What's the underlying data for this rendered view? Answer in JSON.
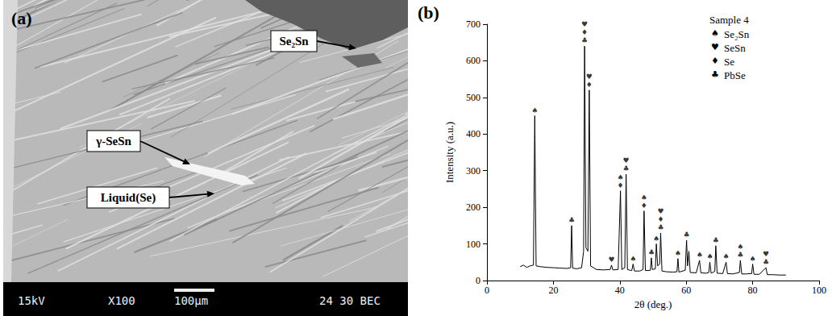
{
  "micrograph": {
    "panel_label": "(a)",
    "annotations": [
      {
        "label": "Se₂Sn"
      },
      {
        "label": "γ-SeSn"
      },
      {
        "label": "Liquid(Se)"
      }
    ],
    "info_bar": [
      "15kV",
      "X100",
      "100µm",
      "24 30 BEC"
    ]
  },
  "chart_data": {
    "type": "line",
    "panel_label": "(b)",
    "legend_title": "Sample 4",
    "legend": "upper right",
    "x_label": "2θ (deg.)",
    "y_label": "Intensity (a.u.)",
    "color": "#000000",
    "phases": [
      {
        "name": "Se₂Sn",
        "symbol": "♠"
      },
      {
        "name": "SeSn",
        "symbol": "♥"
      },
      {
        "name": "Se",
        "symbol": "♦"
      },
      {
        "name": "PbSe",
        "symbol": "♣"
      }
    ],
    "x": [
      10,
      11,
      12,
      13,
      14,
      14.4,
      14.8,
      16,
      18,
      20,
      22,
      24,
      25.2,
      25.5,
      25.8,
      27,
      28.5,
      29.1,
      29.4,
      29.8,
      30.4,
      30.8,
      31.2,
      33,
      35,
      37.1,
      37.5,
      37.9,
      39.5,
      40.2,
      40.6,
      41.5,
      41.9,
      42.3,
      43.6,
      44,
      44.4,
      46,
      47,
      47.3,
      47.7,
      49.2,
      49.5,
      49.8,
      50.7,
      51,
      51.4,
      52,
      52.3,
      52.7,
      54,
      56,
      57.2,
      57.5,
      57.8,
      59.7,
      60.1,
      60.4,
      60.8,
      61.2,
      63,
      64,
      64.4,
      66,
      66.8,
      67.1,
      67.5,
      68.6,
      68.9,
      69.3,
      71,
      72,
      72.4,
      74,
      76,
      76.3,
      76.7,
      78,
      79.7,
      80,
      80.4,
      82,
      84,
      84.4,
      86,
      88,
      90
    ],
    "values": [
      38,
      42,
      36,
      40,
      42,
      450,
      40,
      38,
      36,
      35,
      34,
      33,
      35,
      150,
      34,
      32,
      35,
      80,
      640,
      90,
      80,
      520,
      40,
      30,
      29,
      30,
      42,
      29,
      30,
      245,
      30,
      35,
      290,
      30,
      27,
      45,
      26,
      26,
      30,
      190,
      27,
      28,
      62,
      30,
      32,
      100,
      40,
      45,
      130,
      26,
      24,
      23,
      24,
      60,
      23,
      28,
      110,
      40,
      80,
      22,
      21,
      55,
      21,
      20,
      22,
      50,
      20,
      25,
      95,
      20,
      19,
      50,
      19,
      18,
      22,
      55,
      18,
      18,
      19,
      45,
      17,
      17,
      35,
      16,
      16,
      15,
      15
    ],
    "xlim": [
      0,
      100
    ],
    "xticks": [
      0,
      20,
      40,
      60,
      80,
      100
    ],
    "ylim": [
      0,
      700
    ],
    "yticks": [
      0,
      100,
      200,
      300,
      400,
      500,
      600,
      700
    ],
    "grid": false,
    "peak_labels": [
      {
        "x": 14.4,
        "phases": [
          "Se₂Sn"
        ]
      },
      {
        "x": 25.5,
        "phases": [
          "PbSe"
        ]
      },
      {
        "x": 29.4,
        "phases": [
          "SeSn",
          "Se",
          "PbSe"
        ]
      },
      {
        "x": 30.8,
        "phases": [
          "SeSn",
          "Se"
        ]
      },
      {
        "x": 37.5,
        "phases": [
          "SeSn"
        ]
      },
      {
        "x": 40.2,
        "phases": [
          "Se₂Sn",
          "Se"
        ]
      },
      {
        "x": 41.9,
        "phases": [
          "SeSn",
          "PbSe"
        ]
      },
      {
        "x": 44,
        "phases": [
          "Se₂Sn"
        ]
      },
      {
        "x": 47.3,
        "phases": [
          "Se₂Sn",
          "Se"
        ]
      },
      {
        "x": 49.5,
        "phases": [
          "PbSe"
        ]
      },
      {
        "x": 51,
        "phases": [
          "Se₂Sn"
        ]
      },
      {
        "x": 52.3,
        "phases": [
          "SeSn",
          "Se",
          "PbSe"
        ]
      },
      {
        "x": 57.5,
        "phases": [
          "Se₂Sn"
        ]
      },
      {
        "x": 60.1,
        "phases": [
          "PbSe"
        ]
      },
      {
        "x": 64,
        "phases": [
          "Se₂Sn"
        ]
      },
      {
        "x": 67.1,
        "phases": [
          "Se₂Sn"
        ]
      },
      {
        "x": 68.9,
        "phases": [
          "PbSe"
        ]
      },
      {
        "x": 72,
        "phases": [
          "Se₂Sn"
        ]
      },
      {
        "x": 76.3,
        "phases": [
          "Se₂Sn",
          "PbSe"
        ]
      },
      {
        "x": 80,
        "phases": [
          "Se₂Sn"
        ]
      },
      {
        "x": 84,
        "phases": [
          "SeSn",
          "PbSe"
        ]
      }
    ]
  }
}
